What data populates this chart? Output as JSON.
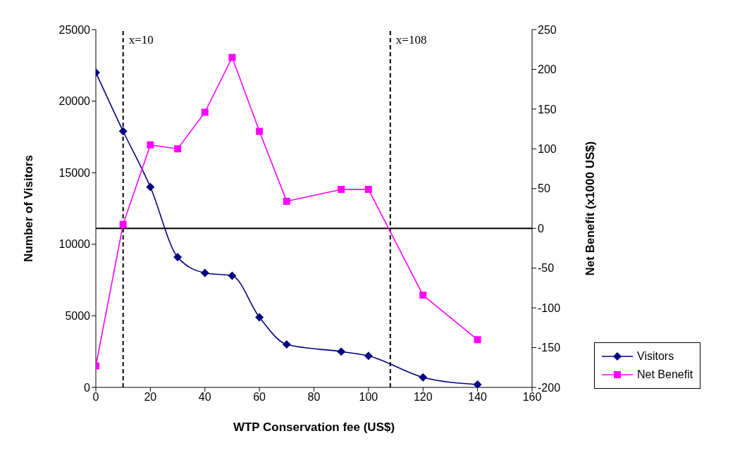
{
  "chart_data": {
    "type": "line",
    "xlabel": "WTP Conservation fee (US$)",
    "ylabel": "Number of Visitors",
    "y2label": "Net Benefit (x1000 US$)",
    "x": [
      0,
      10,
      20,
      30,
      40,
      50,
      60,
      70,
      90,
      100,
      120,
      140
    ],
    "series": [
      {
        "name": "Visitors",
        "color": "#000080",
        "marker": "diamond",
        "values": [
          22000,
          17900,
          14000,
          9100,
          8000,
          7800,
          4900,
          3000,
          2500,
          2200,
          700,
          200
        ]
      },
      {
        "name": "Net Benefit",
        "color": "#ff00ff",
        "marker": "square",
        "axis": "y2",
        "values": [
          -173,
          5,
          105,
          100,
          146,
          215,
          122,
          34,
          49,
          49,
          -84,
          -140
        ]
      }
    ],
    "xlim": [
      0,
      160
    ],
    "xticks": [
      0,
      20,
      40,
      60,
      80,
      100,
      120,
      140,
      160
    ],
    "ylim": [
      0,
      25000
    ],
    "yticks": [
      0,
      5000,
      10000,
      15000,
      20000,
      25000
    ],
    "y2lim": [
      -200,
      250
    ],
    "y2ticks": [
      -200,
      -150,
      -100,
      -50,
      0,
      50,
      100,
      150,
      200,
      250
    ],
    "ref_lines": [
      {
        "axis": "x",
        "value": 10,
        "label": "x=10",
        "color": "#000000",
        "line_style": "dashed"
      },
      {
        "axis": "x",
        "value": 108,
        "label": "x=108",
        "color": "#000000",
        "line_style": "dashed"
      },
      {
        "axis": "y2",
        "value": 0,
        "label": null,
        "color": "#000000",
        "line_style": "solid"
      }
    ],
    "grid": false,
    "legend": "bottom right"
  }
}
